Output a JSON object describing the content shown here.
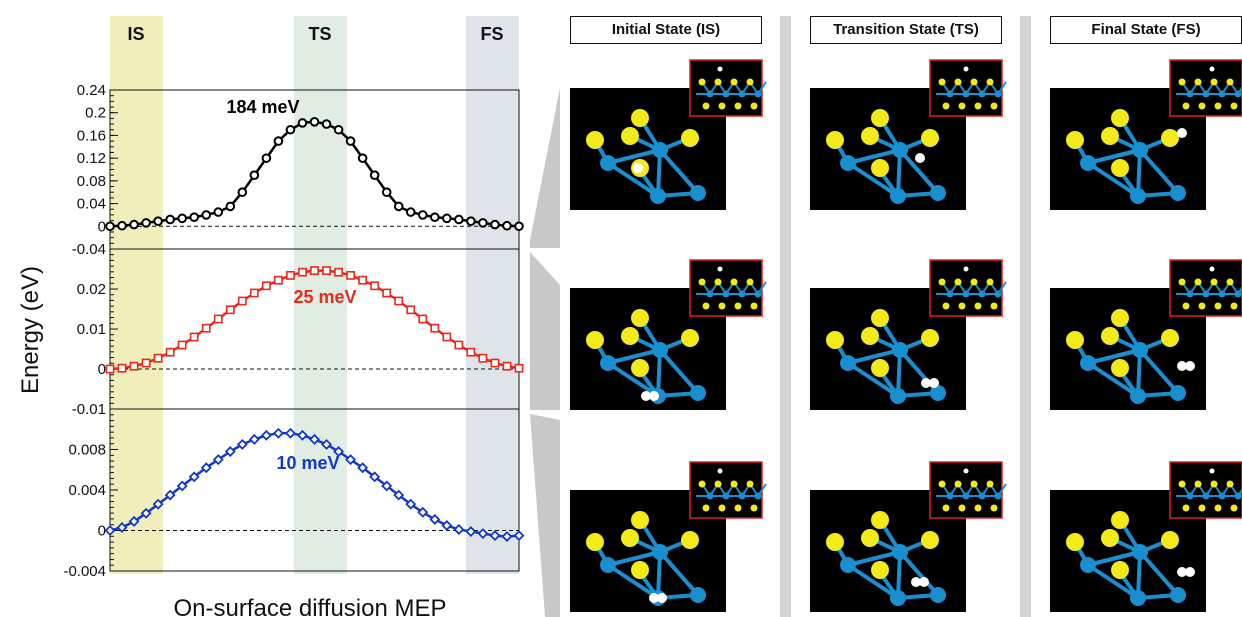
{
  "chart_data": [
    {
      "type": "line",
      "series": [
        {
          "name": "184 meV",
          "color": "#000000",
          "marker": "circle",
          "x": [
            0,
            1,
            2,
            3,
            4,
            5,
            6,
            7,
            8,
            9,
            10,
            11,
            12,
            13,
            14,
            15,
            16,
            17,
            18,
            19,
            20,
            21,
            22,
            23,
            24,
            25,
            26,
            27,
            28,
            29,
            30,
            31,
            32,
            33,
            34
          ],
          "values": [
            0,
            0.001,
            0.003,
            0.006,
            0.009,
            0.012,
            0.014,
            0.016,
            0.02,
            0.025,
            0.035,
            0.06,
            0.09,
            0.12,
            0.15,
            0.17,
            0.182,
            0.184,
            0.18,
            0.17,
            0.15,
            0.12,
            0.09,
            0.06,
            0.035,
            0.025,
            0.02,
            0.016,
            0.014,
            0.012,
            0.009,
            0.006,
            0.003,
            0.001,
            0
          ]
        }
      ],
      "ylim": [
        -0.04,
        0.24
      ],
      "yticks": [
        "0.24",
        "0.2",
        "0.16",
        "0.12",
        "0.08",
        "0.04",
        "0",
        "-0.04"
      ],
      "ytick_values": [
        0.24,
        0.2,
        0.16,
        0.12,
        0.08,
        0.04,
        0,
        -0.04
      ],
      "annotation": "184 meV",
      "annotation_color": "#000000",
      "reference_line": 0
    },
    {
      "type": "line",
      "series": [
        {
          "name": "25 meV",
          "color": "#e8291c",
          "marker": "square",
          "x": [
            0,
            1,
            2,
            3,
            4,
            5,
            6,
            7,
            8,
            9,
            10,
            11,
            12,
            13,
            14,
            15,
            16,
            17,
            18,
            19,
            20,
            21,
            22,
            23,
            24,
            25,
            26,
            27,
            28,
            29,
            30,
            31,
            32,
            33,
            34
          ],
          "values": [
            0,
            0.0002,
            0.0007,
            0.0015,
            0.0027,
            0.0042,
            0.006,
            0.008,
            0.0102,
            0.0125,
            0.0148,
            0.017,
            0.019,
            0.0208,
            0.0222,
            0.0234,
            0.0242,
            0.0246,
            0.0246,
            0.0242,
            0.0234,
            0.0222,
            0.0208,
            0.019,
            0.017,
            0.0148,
            0.0125,
            0.0102,
            0.008,
            0.006,
            0.0042,
            0.0027,
            0.0015,
            0.0007,
            0.0002
          ]
        }
      ],
      "ylim": [
        -0.01,
        0.03
      ],
      "yticks": [
        "0.02",
        "0.01",
        "0",
        "-0.01"
      ],
      "ytick_values": [
        0.02,
        0.01,
        0,
        -0.01
      ],
      "annotation": "25 meV",
      "annotation_color": "#e8291c",
      "reference_line": 0
    },
    {
      "type": "line",
      "series": [
        {
          "name": "10 meV",
          "color": "#1238c8",
          "marker": "diamond",
          "x": [
            0,
            1,
            2,
            3,
            4,
            5,
            6,
            7,
            8,
            9,
            10,
            11,
            12,
            13,
            14,
            15,
            16,
            17,
            18,
            19,
            20,
            21,
            22,
            23,
            24,
            25,
            26,
            27,
            28,
            29,
            30,
            31,
            32,
            33,
            34
          ],
          "values": [
            0,
            0.0003,
            0.0009,
            0.0017,
            0.0026,
            0.0035,
            0.0044,
            0.0053,
            0.0062,
            0.007,
            0.0078,
            0.0085,
            0.009,
            0.0094,
            0.0096,
            0.0096,
            0.0094,
            0.009,
            0.0085,
            0.0078,
            0.007,
            0.0062,
            0.0053,
            0.0044,
            0.0035,
            0.0026,
            0.0018,
            0.0011,
            0.0005,
            0.0001,
            -0.0001,
            -0.0003,
            -0.0005,
            -0.0006,
            -0.0005
          ]
        }
      ],
      "ylim": [
        -0.004,
        0.012
      ],
      "yticks": [
        "0.008",
        "0.004",
        "0",
        "-0.004"
      ],
      "ytick_values": [
        0.008,
        0.004,
        0,
        -0.004
      ],
      "annotation": "10 meV",
      "annotation_color": "#1238c8",
      "reference_line": 0
    }
  ],
  "ylabel": "Energy (eV)",
  "xlabel": "On-surface diffusion MEP",
  "bands": [
    {
      "label": "IS",
      "color": "#f0eebb"
    },
    {
      "label": "TS",
      "color": "#e1ede2"
    },
    {
      "label": "FS",
      "color": "#dee4ea"
    }
  ],
  "panels": {
    "headers": [
      "Initial State (IS)",
      "Transition State (TS)",
      "Final State (FS)"
    ]
  },
  "atom_colors": {
    "metal": "#1a8fd0",
    "chalcogen": "#f2ea1a",
    "hydrogen": "#ffffff",
    "inset_border": "#e02020"
  }
}
